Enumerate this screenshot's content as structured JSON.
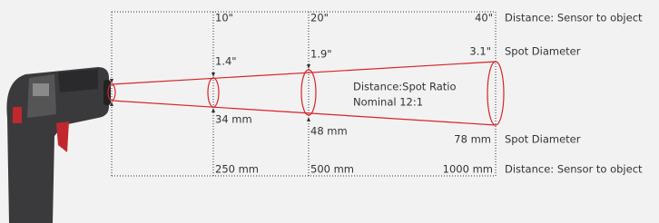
{
  "distances_inches": [
    "10\"",
    "20\"",
    "40\""
  ],
  "distances_mm": [
    "250 mm",
    "500 mm",
    "1000 mm"
  ],
  "spot_inches": [
    "1.4\"",
    "1.9\"",
    "3.1\""
  ],
  "spot_mm": [
    "34 mm",
    "48 mm",
    "78 mm"
  ],
  "ratio": {
    "title": "Distance:Spot Ratio",
    "value": "Nominal 12:1"
  },
  "side_labels": {
    "top_distance": "Distance: Sensor to object",
    "top_spot": "Spot Diameter",
    "bottom_spot": "Spot Diameter",
    "bottom_distance": "Distance: Sensor to object"
  }
}
